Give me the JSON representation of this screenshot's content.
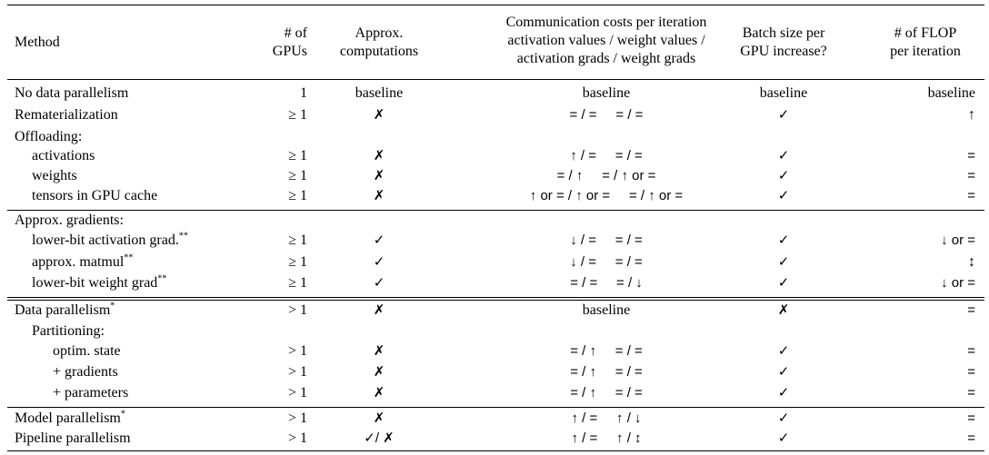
{
  "header": {
    "method": "Method",
    "gpus": [
      "# of",
      "GPUs"
    ],
    "approx": [
      "Approx.",
      "computations"
    ],
    "comm": [
      "Communication costs per iteration",
      "activation values / weight values /",
      "activation grads / weight grads"
    ],
    "batch": [
      "Batch size per",
      "GPU increase?"
    ],
    "flop": [
      "# of FLOP",
      "per iteration"
    ]
  },
  "rows": [
    {
      "method": "No data parallelism",
      "sup": "",
      "gpus": "1",
      "approx": "baseline",
      "comm": "baseline",
      "batch": "baseline",
      "flop": "baseline",
      "indent": 0
    },
    {
      "method": "Rematerialization",
      "sup": "",
      "gpus": "≥ 1",
      "approx": "✗",
      "comm": "= / =     = / =",
      "batch": "✓",
      "flop": "↑",
      "indent": 0
    },
    {
      "method": "Offloading:",
      "sup": "",
      "gpus": "",
      "approx": "",
      "comm": "",
      "batch": "",
      "flop": "",
      "indent": 0
    },
    {
      "method": "activations",
      "sup": "",
      "gpus": "≥ 1",
      "approx": "✗",
      "comm": "↑ / =     = / =",
      "batch": "✓",
      "flop": "=",
      "indent": 1
    },
    {
      "method": "weights",
      "sup": "",
      "gpus": "≥ 1",
      "approx": "✗",
      "comm": "= / ↑     = / ↑ or =",
      "batch": "✓",
      "flop": "=",
      "indent": 1
    },
    {
      "method": "tensors in GPU cache",
      "sup": "",
      "gpus": "≥ 1",
      "approx": "✗",
      "comm": "↑ or = / ↑ or =     = / ↑ or =",
      "batch": "✓",
      "flop": "=",
      "indent": 1
    },
    {
      "method": "Approx. gradients:",
      "sup": "",
      "gpus": "",
      "approx": "",
      "comm": "",
      "batch": "",
      "flop": "",
      "indent": 0
    },
    {
      "method": "lower-bit activation grad.",
      "sup": "**",
      "gpus": "≥ 1",
      "approx": "✓",
      "comm": "↓ / =     = / =",
      "batch": "✓",
      "flop": "↓ or =",
      "indent": 1
    },
    {
      "method": "approx. matmul",
      "sup": "**",
      "gpus": "≥ 1",
      "approx": "✓",
      "comm": "↓ / =     = / =",
      "batch": "✓",
      "flop": "↕",
      "indent": 1
    },
    {
      "method": "lower-bit weight grad",
      "sup": "**",
      "gpus": "≥ 1",
      "approx": "✓",
      "comm": "= / =     = / ↓",
      "batch": "✓",
      "flop": "↓ or =",
      "indent": 1
    },
    {
      "method": "Data parallelism",
      "sup": "*",
      "gpus": "> 1",
      "approx": "✗",
      "comm": "baseline",
      "batch": "✗",
      "flop": "=",
      "indent": 0
    },
    {
      "method": "Partitioning:",
      "sup": "",
      "gpus": "",
      "approx": "",
      "comm": "",
      "batch": "",
      "flop": "",
      "indent": 1
    },
    {
      "method": "optim. state",
      "sup": "",
      "gpus": "> 1",
      "approx": "✗",
      "comm": "= / ↑     = / =",
      "batch": "✓",
      "flop": "=",
      "indent": 2
    },
    {
      "method": "+ gradients",
      "sup": "",
      "gpus": "> 1",
      "approx": "✗",
      "comm": "= / ↑     = / =",
      "batch": "✓",
      "flop": "=",
      "indent": 2
    },
    {
      "method": "+ parameters",
      "sup": "",
      "gpus": "> 1",
      "approx": "✗",
      "comm": "= / ↑     = / =",
      "batch": "✓",
      "flop": "=",
      "indent": 2
    },
    {
      "method": "Model parallelism",
      "sup": "*",
      "gpus": "> 1",
      "approx": "✗",
      "comm": "↑ / =     ↑ / ↓",
      "batch": "✓",
      "flop": "=",
      "indent": 0
    },
    {
      "method": "Pipeline parallelism",
      "sup": "",
      "gpus": "> 1",
      "approx": "✓/ ✗",
      "comm": "↑ / =     ↑ / ↕",
      "batch": "✓",
      "flop": "=",
      "indent": 0
    }
  ]
}
